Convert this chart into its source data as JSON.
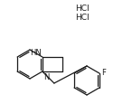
{
  "background_color": "#ffffff",
  "line_color": "#1a1a1a",
  "text_color": "#1a1a1a",
  "hcl1_text": "HCl",
  "hcl2_text": "HCl",
  "hn_text": "HN",
  "n_text": "N",
  "f_text": "F",
  "figsize": [
    1.36,
    1.16
  ],
  "dpi": 100
}
